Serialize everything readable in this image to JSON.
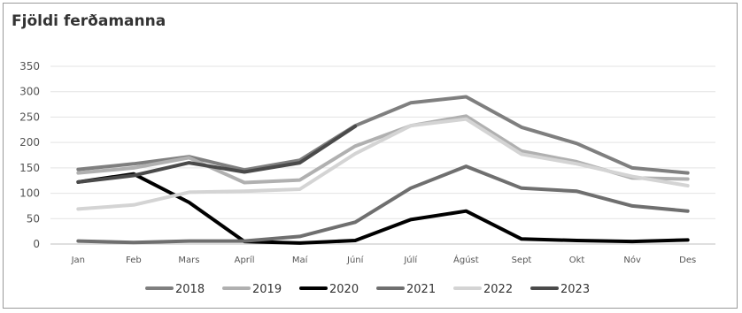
{
  "chart_data": {
    "type": "line",
    "title": "Fjöldi ferðamanna",
    "xlabel": "",
    "ylabel": "",
    "categories": [
      "Jan",
      "Feb",
      "Mars",
      "Apríl",
      "Maí",
      "Júní",
      "Júlí",
      "Ágúst",
      "Sept",
      "Okt",
      "Nóv",
      "Des"
    ],
    "ylim": [
      0,
      350
    ],
    "yticks": [
      "0",
      "50",
      "100",
      "150",
      "200",
      "250",
      "300",
      "350"
    ],
    "grid": true,
    "legend_position": "bottom",
    "series": [
      {
        "name": "2018",
        "color": "#7f7f7f",
        "values": [
          147,
          158,
          172,
          146,
          165,
          233,
          278,
          290,
          230,
          198,
          150,
          140
        ]
      },
      {
        "name": "2019",
        "color": "#b0b0b0",
        "values": [
          140,
          150,
          170,
          121,
          126,
          193,
          233,
          252,
          183,
          162,
          130,
          128
        ]
      },
      {
        "name": "2020",
        "color": "#000000",
        "values": [
          122,
          138,
          82,
          5,
          2,
          7,
          48,
          65,
          10,
          7,
          5,
          8
        ]
      },
      {
        "name": "2021",
        "color": "#6f6f6f",
        "values": [
          6,
          3,
          6,
          6,
          15,
          43,
          110,
          153,
          110,
          104,
          75,
          65
        ]
      },
      {
        "name": "2022",
        "color": "#d4d4d4",
        "values": [
          69,
          77,
          102,
          104,
          108,
          178,
          233,
          246,
          177,
          158,
          133,
          115
        ]
      },
      {
        "name": "2023",
        "color": "#4a4a4a",
        "values": [
          122,
          135,
          160,
          142,
          160,
          232,
          null,
          null,
          null,
          null,
          null,
          null
        ]
      }
    ]
  }
}
